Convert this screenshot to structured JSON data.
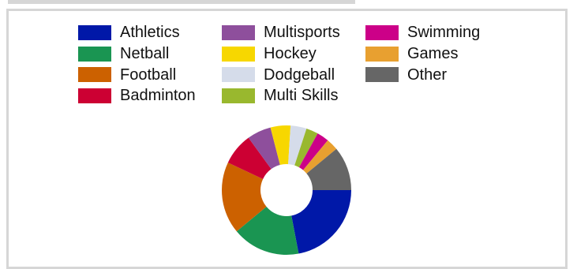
{
  "chart_data": {
    "type": "pie",
    "title": "",
    "hole": true,
    "start_angle_deg": 90,
    "direction": "clockwise",
    "legend_position": "top",
    "slices": [
      {
        "label": "Athletics",
        "value": 22,
        "color": "#0018a8"
      },
      {
        "label": "Netball",
        "value": 17,
        "color": "#1a9552"
      },
      {
        "label": "Football",
        "value": 18,
        "color": "#cc6100"
      },
      {
        "label": "Badminton",
        "value": 8,
        "color": "#cc0033"
      },
      {
        "label": "Multisports",
        "value": 6,
        "color": "#8e4f9c"
      },
      {
        "label": "Hockey",
        "value": 5,
        "color": "#f7d700"
      },
      {
        "label": "Dodgeball",
        "value": 4,
        "color": "#d5dcea"
      },
      {
        "label": "Multi Skills",
        "value": 3,
        "color": "#99b82e"
      },
      {
        "label": "Swimming",
        "value": 3,
        "color": "#cc0088"
      },
      {
        "label": "Games",
        "value": 3,
        "color": "#e8a030"
      },
      {
        "label": "Other",
        "value": 11,
        "color": "#666666"
      }
    ]
  }
}
